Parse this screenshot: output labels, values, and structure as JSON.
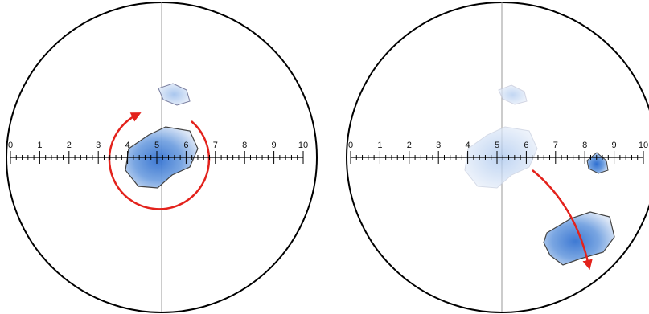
{
  "panels": [
    {
      "scale_labels": [
        "0",
        "1",
        "2",
        "3",
        "4",
        "5",
        "6",
        "7",
        "8",
        "9",
        "10"
      ]
    },
    {
      "scale_labels": [
        "0",
        "1",
        "2",
        "3",
        "4",
        "5",
        "6",
        "7",
        "8",
        "9",
        "10"
      ]
    }
  ]
}
